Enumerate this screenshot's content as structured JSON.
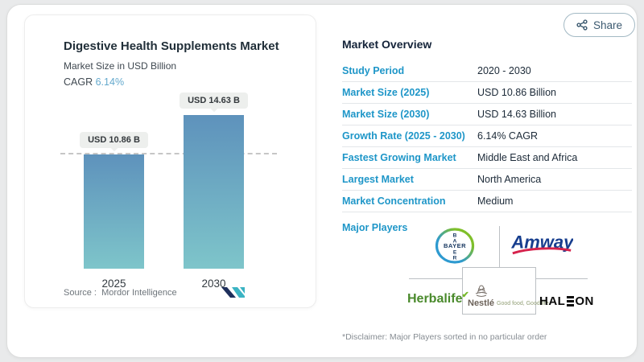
{
  "header": {
    "share_label": "Share"
  },
  "chart_card": {
    "title": "Digestive Health Supplements Market",
    "subtitle": "Market Size in USD Billion",
    "cagr_label": "CAGR",
    "cagr_value": "6.14%",
    "source_label": "Source :",
    "source_name": "Mordor Intelligence"
  },
  "chart_data": {
    "type": "bar",
    "title": "Digestive Health Supplements Market",
    "unit": "USD Billion",
    "categories": [
      "2025",
      "2030"
    ],
    "values": [
      10.86,
      14.63
    ],
    "value_labels": [
      "USD 10.86 B",
      "USD 14.63 B"
    ],
    "ylim": [
      0,
      16
    ],
    "reference_line_at": 10.86,
    "grid": false,
    "bar_gradient_top": "#5e92bc",
    "bar_gradient_bottom": "#7ec5ca"
  },
  "overview": {
    "title": "Market Overview",
    "rows": [
      {
        "label": "Study Period",
        "value": "2020 - 2030"
      },
      {
        "label": "Market Size (2025)",
        "value": "USD 10.86 Billion"
      },
      {
        "label": "Market Size (2030)",
        "value": "USD 14.63 Billion"
      },
      {
        "label": "Growth Rate (2025 - 2030)",
        "value": "6.14% CAGR"
      },
      {
        "label": "Fastest Growing Market",
        "value": "Middle East and Africa"
      },
      {
        "label": "Largest Market",
        "value": "North America"
      },
      {
        "label": "Market Concentration",
        "value": "Medium"
      }
    ],
    "major_players_label": "Major Players",
    "disclaimer": "*Disclaimer: Major Players sorted in no particular order"
  },
  "logos": {
    "bayer_text": "BAYER",
    "bayer_vertical": [
      "B",
      "A",
      "E",
      "R"
    ],
    "amway_text": "Amway",
    "herbalife_text": "Herbalife",
    "herbalife_mark": "✔",
    "nestle_text": "Nestlé",
    "nestle_tagline": "Good food, Good life",
    "haleon_left": "HAL",
    "haleon_right": "ON"
  },
  "colors": {
    "accent_blue": "#1e96c8",
    "navy_text": "#1c2a38",
    "cagr_teal": "#64a9cd",
    "dashed_line": "#c6c6c6"
  }
}
